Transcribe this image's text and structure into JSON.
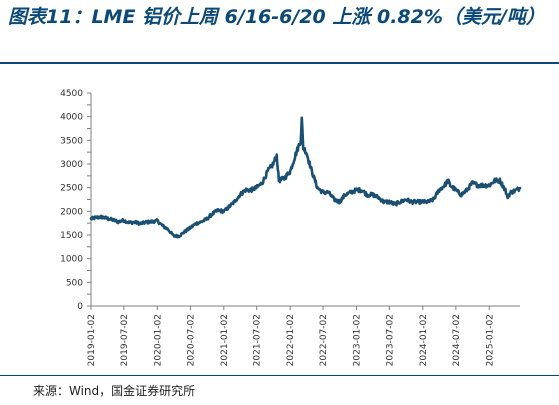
{
  "title": "图表11：LME 铝价上周 6/16-6/20 上涨 0.82%（美元/吨）",
  "source": "来源：Wind，国金证券研究所",
  "colors": {
    "line": "#1b4f72",
    "title": "#0b4a78",
    "axis": "#808080"
  },
  "chart_data": {
    "type": "line",
    "title": "图表11：LME 铝价上周 6/16-6/20 上涨 0.82%（美元/吨）",
    "xlabel": "",
    "ylabel": "",
    "ylim": [
      0,
      4500
    ],
    "yticks": [
      0,
      250,
      500,
      750,
      1000,
      1250,
      1500,
      1750,
      2000,
      2250,
      2500,
      2750,
      3000,
      3250,
      3500,
      3750,
      4000,
      4250,
      4500
    ],
    "ytick_labels": [
      "0",
      "",
      "500",
      "",
      "1000",
      "",
      "1500",
      "",
      "2000",
      "",
      "2500",
      "",
      "3000",
      "",
      "3500",
      "",
      "4000",
      "",
      "4500"
    ],
    "xlim": [
      "2019-01-02",
      "2025-06-20"
    ],
    "xticks": [
      "2019-01-02",
      "2019-07-02",
      "2020-01-02",
      "2020-07-02",
      "2021-01-02",
      "2021-07-02",
      "2022-01-02",
      "2022-07-02",
      "2023-01-02",
      "2023-07-02",
      "2024-01-02",
      "2024-07-02",
      "2025-01-02"
    ],
    "grid": false,
    "legend": "none",
    "series": [
      {
        "name": "",
        "x": [
          "2019-01-02",
          "2019-02-01",
          "2019-03-01",
          "2019-04-01",
          "2019-05-01",
          "2019-06-01",
          "2019-07-01",
          "2019-08-01",
          "2019-09-01",
          "2019-10-01",
          "2019-11-01",
          "2019-12-01",
          "2020-01-02",
          "2020-02-01",
          "2020-03-01",
          "2020-04-01",
          "2020-05-01",
          "2020-06-01",
          "2020-07-01",
          "2020-08-01",
          "2020-09-01",
          "2020-10-01",
          "2020-11-01",
          "2020-12-01",
          "2021-01-04",
          "2021-02-01",
          "2021-03-01",
          "2021-04-01",
          "2021-05-01",
          "2021-06-01",
          "2021-07-01",
          "2021-08-01",
          "2021-09-01",
          "2021-10-01",
          "2021-10-20",
          "2021-11-01",
          "2021-12-01",
          "2022-01-03",
          "2022-02-01",
          "2022-03-01",
          "2022-03-07",
          "2022-03-15",
          "2022-04-01",
          "2022-05-01",
          "2022-06-01",
          "2022-07-01",
          "2022-08-01",
          "2022-09-01",
          "2022-10-01",
          "2022-11-01",
          "2022-12-01",
          "2023-01-03",
          "2023-02-01",
          "2023-03-01",
          "2023-04-01",
          "2023-05-01",
          "2023-06-01",
          "2023-07-01",
          "2023-08-01",
          "2023-09-01",
          "2023-10-01",
          "2023-11-01",
          "2023-12-01",
          "2024-01-02",
          "2024-02-01",
          "2024-03-01",
          "2024-04-01",
          "2024-05-01",
          "2024-05-20",
          "2024-06-01",
          "2024-07-01",
          "2024-08-01",
          "2024-09-01",
          "2024-10-01",
          "2024-11-01",
          "2024-12-01",
          "2025-01-02",
          "2025-02-01",
          "2025-03-01",
          "2025-04-01",
          "2025-04-10",
          "2025-05-01",
          "2025-06-01",
          "2025-06-20"
        ],
        "values": [
          1840,
          1870,
          1880,
          1850,
          1820,
          1780,
          1810,
          1760,
          1770,
          1740,
          1770,
          1780,
          1800,
          1690,
          1620,
          1480,
          1480,
          1570,
          1650,
          1740,
          1780,
          1840,
          1950,
          2020,
          2000,
          2100,
          2200,
          2350,
          2450,
          2450,
          2500,
          2600,
          2850,
          3000,
          3180,
          2650,
          2700,
          2850,
          3200,
          3500,
          3950,
          3350,
          3250,
          2850,
          2500,
          2400,
          2400,
          2250,
          2200,
          2350,
          2400,
          2450,
          2450,
          2350,
          2350,
          2300,
          2200,
          2200,
          2150,
          2200,
          2250,
          2200,
          2200,
          2200,
          2200,
          2250,
          2450,
          2550,
          2650,
          2550,
          2450,
          2350,
          2450,
          2600,
          2550,
          2550,
          2550,
          2650,
          2650,
          2450,
          2300,
          2400,
          2450,
          2490
        ]
      }
    ]
  }
}
